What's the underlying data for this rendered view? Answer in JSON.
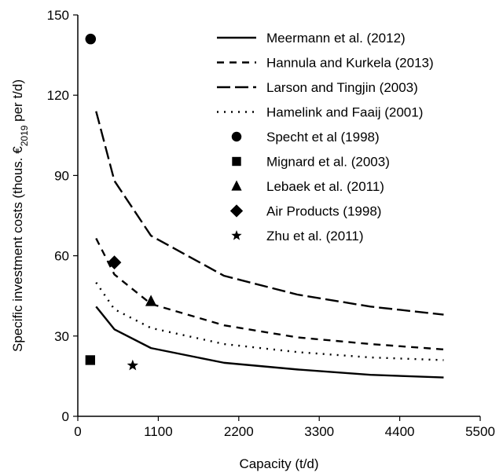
{
  "chart_data": {
    "type": "line",
    "title": "",
    "xlabel": "Capacity (t/d)",
    "ylabel_prefix": "Specific investment costs (thous. €",
    "ylabel_sub": "2019",
    "ylabel_suffix": " per t/d)",
    "xlim": [
      0,
      5500
    ],
    "ylim": [
      0,
      150
    ],
    "xticks": [
      0,
      1100,
      2200,
      3300,
      4400,
      5500
    ],
    "yticks": [
      0,
      30,
      60,
      90,
      120,
      150
    ],
    "grid": false,
    "legend_position": "top-right",
    "series": [
      {
        "name": "Meermann et al. (2012)",
        "kind": "line",
        "dash": "solid",
        "x": [
          250,
          500,
          1000,
          2000,
          3000,
          4000,
          5000
        ],
        "y": [
          41,
          32.5,
          25.5,
          20,
          17.5,
          15.5,
          14.5
        ]
      },
      {
        "name": "Hannula and Kurkela (2013)",
        "kind": "line",
        "dash": "short-dash",
        "x": [
          250,
          500,
          1000,
          2000,
          3000,
          4000,
          5000
        ],
        "y": [
          66.5,
          53,
          42,
          34,
          29.5,
          27,
          25
        ]
      },
      {
        "name": "Larson and Tingjin (2003)",
        "kind": "line",
        "dash": "long-dash",
        "x": [
          250,
          500,
          1000,
          2000,
          3000,
          4000,
          5000
        ],
        "y": [
          114,
          88,
          67.5,
          52.5,
          45.5,
          41,
          38
        ]
      },
      {
        "name": "Hamelink and Faaij (2001)",
        "kind": "line",
        "dash": "dotted",
        "x": [
          250,
          500,
          1000,
          2000,
          3000,
          4000,
          5000
        ],
        "y": [
          50,
          40,
          33,
          27,
          24,
          22,
          21
        ]
      },
      {
        "name": "Specht et al (1998)",
        "kind": "marker",
        "marker": "circle",
        "x": [
          175
        ],
        "y": [
          141
        ]
      },
      {
        "name": "Mignard et al. (2003)",
        "kind": "marker",
        "marker": "square",
        "x": [
          170
        ],
        "y": [
          21
        ]
      },
      {
        "name": "Lebaek et al. (2011)",
        "kind": "marker",
        "marker": "triangle",
        "x": [
          1000
        ],
        "y": [
          43
        ]
      },
      {
        "name": "Air Products (1998)",
        "kind": "marker",
        "marker": "diamond",
        "x": [
          500
        ],
        "y": [
          57.5
        ]
      },
      {
        "name": "Zhu et al. (2011)",
        "kind": "marker",
        "marker": "star",
        "x": [
          750
        ],
        "y": [
          19
        ]
      }
    ]
  }
}
